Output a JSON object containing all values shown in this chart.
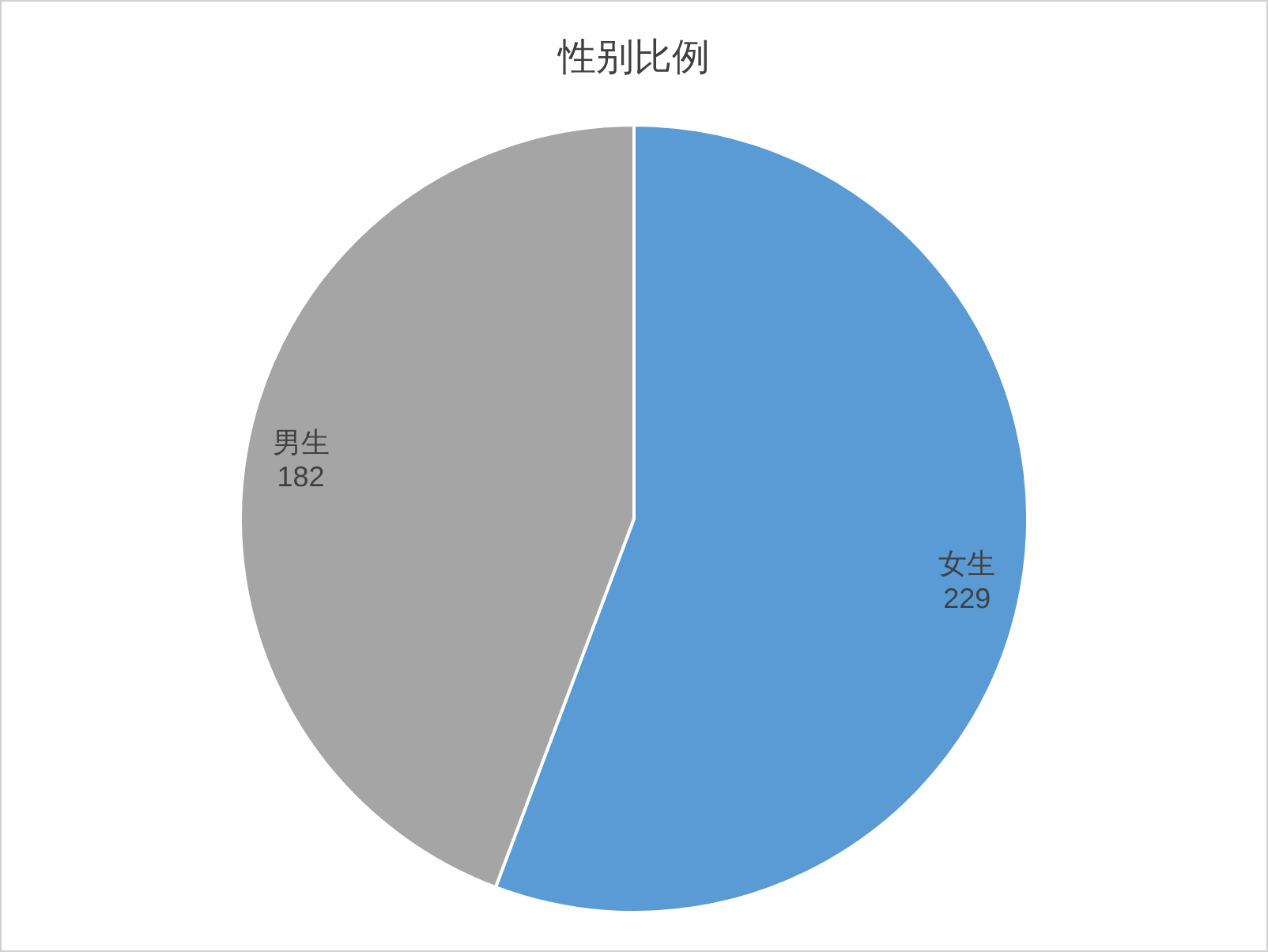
{
  "chart_data": {
    "type": "pie",
    "title": "性别比例",
    "categories": [
      "女生",
      "男生"
    ],
    "values": [
      229,
      182
    ],
    "colors": [
      "#5b9bd5",
      "#a5a5a5"
    ],
    "data_labels": true
  }
}
